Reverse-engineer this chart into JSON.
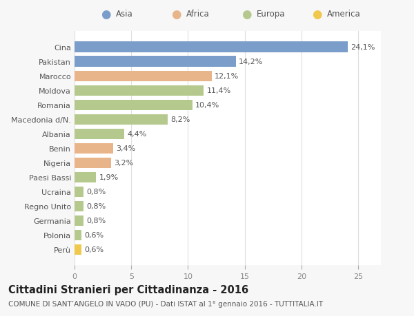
{
  "countries": [
    "Cina",
    "Pakistan",
    "Marocco",
    "Moldova",
    "Romania",
    "Macedonia d/N.",
    "Albania",
    "Benin",
    "Nigeria",
    "Paesi Bassi",
    "Ucraina",
    "Regno Unito",
    "Germania",
    "Polonia",
    "Perù"
  ],
  "values": [
    24.1,
    14.2,
    12.1,
    11.4,
    10.4,
    8.2,
    4.4,
    3.4,
    3.2,
    1.9,
    0.8,
    0.8,
    0.8,
    0.6,
    0.6
  ],
  "labels": [
    "24,1%",
    "14,2%",
    "12,1%",
    "11,4%",
    "10,4%",
    "8,2%",
    "4,4%",
    "3,4%",
    "3,2%",
    "1,9%",
    "0,8%",
    "0,8%",
    "0,8%",
    "0,6%",
    "0,6%"
  ],
  "continents": [
    "Asia",
    "Asia",
    "Africa",
    "Europa",
    "Europa",
    "Europa",
    "Europa",
    "Africa",
    "Africa",
    "Europa",
    "Europa",
    "Europa",
    "Europa",
    "Europa",
    "America"
  ],
  "colors": {
    "Asia": "#7b9dc9",
    "Africa": "#e8b48a",
    "Europa": "#b5c98e",
    "America": "#f0c84e"
  },
  "legend_order": [
    "Asia",
    "Africa",
    "Europa",
    "America"
  ],
  "xlim": [
    0,
    27
  ],
  "xticks": [
    0,
    5,
    10,
    15,
    20,
    25
  ],
  "title": "Cittadini Stranieri per Cittadinanza - 2016",
  "subtitle": "COMUNE DI SANT’ANGELO IN VADO (PU) - Dati ISTAT al 1° gennaio 2016 - TUTTITALIA.IT",
  "bg_color": "#f7f7f7",
  "bar_area_color": "#ffffff",
  "grid_color": "#dddddd",
  "label_fontsize": 8,
  "tick_fontsize": 8,
  "title_fontsize": 10.5,
  "subtitle_fontsize": 7.5
}
